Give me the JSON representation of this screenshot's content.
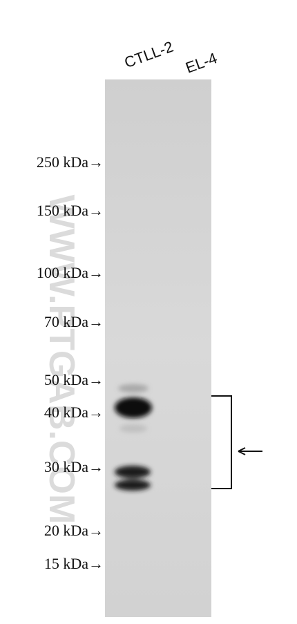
{
  "lanes": [
    "CTLL-2",
    "EL-4"
  ],
  "markers": [
    "250 kDa→",
    "150 kDa→",
    "100 kDa→",
    "70 kDa→",
    "50 kDa→",
    "40 kDa→",
    "30 kDa→",
    "20 kDa→",
    "15 kDa→"
  ],
  "watermark": "WWW.PTGAB.COM"
}
